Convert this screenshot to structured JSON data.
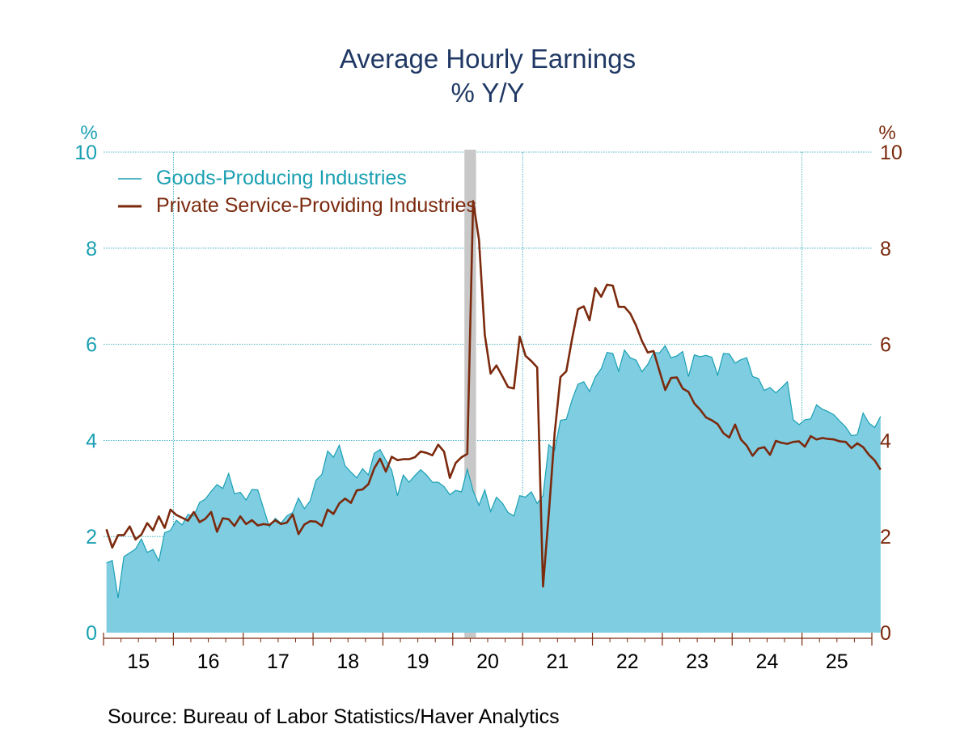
{
  "chart_data": {
    "type": "area",
    "title": "Average Hourly Earnings",
    "subtitle": "% Y/Y",
    "y_left": {
      "unit_label": "%",
      "range": [
        0,
        10
      ],
      "ticks": [
        0,
        2,
        4,
        6,
        8,
        10
      ]
    },
    "y_right": {
      "unit_label": "%",
      "range": [
        0,
        10
      ],
      "ticks": [
        0,
        2,
        4,
        6,
        8,
        10
      ]
    },
    "x": {
      "start": "2015-01",
      "end": "2025-12",
      "frequency": "monthly",
      "tick_labels": [
        "15",
        "16",
        "17",
        "18",
        "19",
        "20",
        "21",
        "22",
        "23",
        "24",
        "25"
      ],
      "vertical_gridlines_at_years": [
        "16",
        "21",
        "25"
      ]
    },
    "recession_shading": {
      "start": "2020-03",
      "end": "2020-04"
    },
    "grid": true,
    "legend": {
      "placement": "top-left"
    },
    "series": [
      {
        "name": "Goods-Producing Industries",
        "type": "area",
        "axis": "left",
        "start": "2015-01",
        "values": [
          1.45,
          1.5,
          0.72,
          1.58,
          1.66,
          1.74,
          1.95,
          1.67,
          1.73,
          1.49,
          2.08,
          2.13,
          2.34,
          2.24,
          2.46,
          2.43,
          2.71,
          2.78,
          2.94,
          3.08,
          3.0,
          3.31,
          2.89,
          2.92,
          2.76,
          2.98,
          2.97,
          2.58,
          2.2,
          2.38,
          2.28,
          2.43,
          2.5,
          2.8,
          2.58,
          2.74,
          3.17,
          3.29,
          3.78,
          3.65,
          3.9,
          3.47,
          3.34,
          3.22,
          3.41,
          3.28,
          3.73,
          3.81,
          3.59,
          3.38,
          2.85,
          3.28,
          3.13,
          3.27,
          3.39,
          3.28,
          3.13,
          3.13,
          3.04,
          2.87,
          2.96,
          2.93,
          3.4,
          2.95,
          2.65,
          2.97,
          2.52,
          2.82,
          2.7,
          2.5,
          2.43,
          2.85,
          2.82,
          2.93,
          2.69,
          2.85,
          3.91,
          3.8,
          4.42,
          4.44,
          4.85,
          5.17,
          5.22,
          5.02,
          5.32,
          5.49,
          5.83,
          5.81,
          5.44,
          5.88,
          5.72,
          5.67,
          5.43,
          5.58,
          5.83,
          5.82,
          5.97,
          5.72,
          5.76,
          5.85,
          5.33,
          5.78,
          5.74,
          5.77,
          5.73,
          5.36,
          5.81,
          5.8,
          5.61,
          5.68,
          5.72,
          5.33,
          5.29,
          5.04,
          5.1,
          4.99,
          5.1,
          5.22,
          4.43,
          4.33,
          4.43,
          4.45,
          4.74,
          4.65,
          4.6,
          4.53,
          4.4,
          4.28,
          4.1,
          4.12,
          4.57,
          4.36,
          4.27,
          4.5
        ]
      },
      {
        "name": "Private Service-Providing Industries",
        "type": "line",
        "axis": "right",
        "start": "2015-01",
        "values": [
          2.15,
          1.77,
          2.03,
          2.03,
          2.21,
          1.94,
          2.04,
          2.28,
          2.13,
          2.42,
          2.18,
          2.56,
          2.45,
          2.39,
          2.33,
          2.51,
          2.3,
          2.37,
          2.51,
          2.1,
          2.38,
          2.36,
          2.22,
          2.42,
          2.26,
          2.34,
          2.23,
          2.26,
          2.24,
          2.34,
          2.26,
          2.29,
          2.46,
          2.05,
          2.25,
          2.32,
          2.31,
          2.22,
          2.56,
          2.47,
          2.69,
          2.79,
          2.7,
          2.96,
          2.98,
          3.09,
          3.42,
          3.62,
          3.35,
          3.66,
          3.59,
          3.61,
          3.61,
          3.65,
          3.77,
          3.74,
          3.69,
          3.91,
          3.77,
          3.22,
          3.53,
          3.65,
          3.72,
          8.98,
          8.18,
          6.2,
          5.39,
          5.56,
          5.34,
          5.11,
          5.08,
          6.16,
          5.76,
          5.65,
          5.52,
          0.96,
          2.48,
          4.15,
          5.32,
          5.44,
          6.12,
          6.73,
          6.79,
          6.5,
          7.17,
          6.99,
          7.24,
          7.22,
          6.78,
          6.78,
          6.64,
          6.39,
          6.07,
          5.83,
          5.86,
          5.45,
          5.05,
          5.3,
          5.31,
          5.08,
          5.01,
          4.77,
          4.64,
          4.48,
          4.42,
          4.34,
          4.15,
          4.06,
          4.33,
          4.02,
          3.89,
          3.68,
          3.83,
          3.86,
          3.7,
          3.99,
          3.95,
          3.93,
          3.97,
          3.98,
          3.87,
          4.09,
          4.02,
          4.05,
          4.03,
          4.02,
          3.98,
          3.97,
          3.84,
          3.94,
          3.86,
          3.7,
          3.58,
          3.39
        ]
      }
    ],
    "source_text": "Source:  Bureau of Labor Statistics/Haver Analytics"
  },
  "colors": {
    "title": "#1f3864",
    "goods_fill": "#7ecde1",
    "goods_line": "#1ba0b3",
    "services_line": "#7b2a0e",
    "left_axis_text": "#1ba0b3",
    "right_axis_text": "#7b2a0e",
    "grid": "#1ba0b3",
    "recession": "#c8c8c8",
    "x_axis": "#7b2a0e",
    "text": "#000000"
  }
}
